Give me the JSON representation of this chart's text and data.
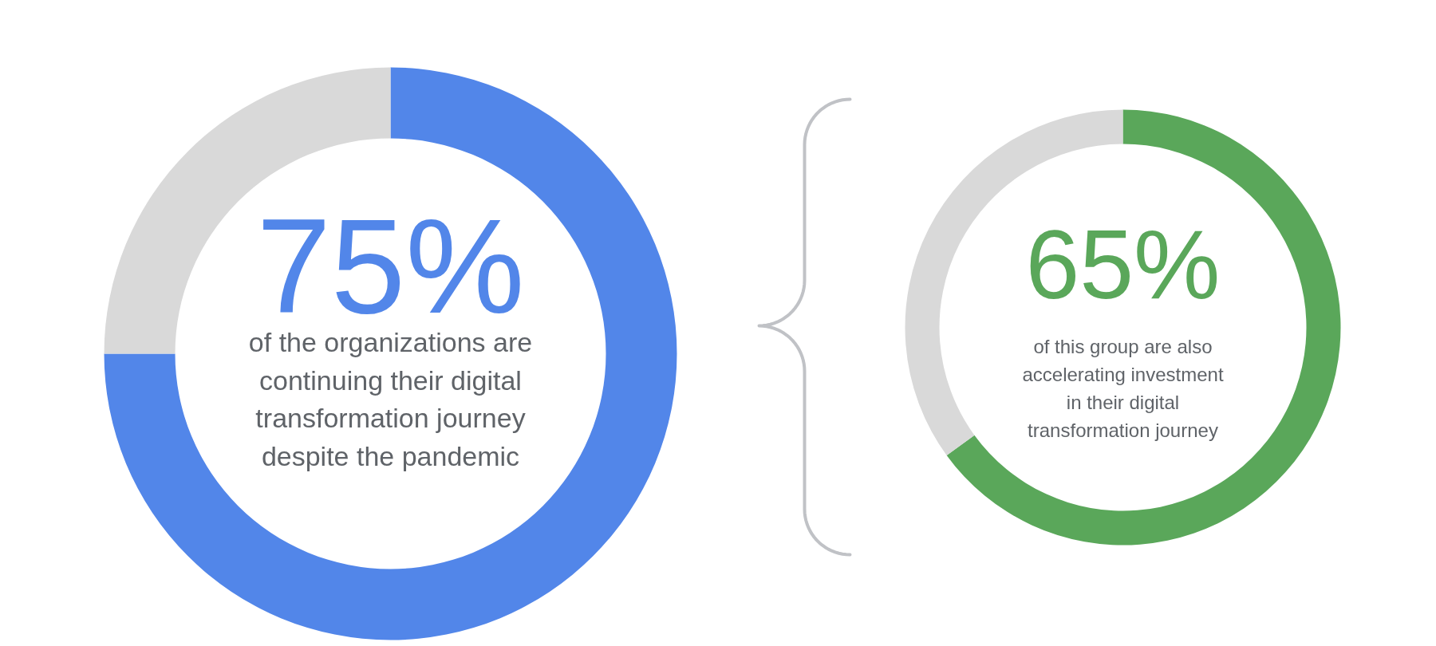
{
  "chart_data": [
    {
      "type": "donut",
      "categories": [
        null,
        null
      ],
      "values": [
        75,
        25
      ],
      "colors": [
        "#5286e9",
        "#d9d9d9"
      ],
      "value_labels": [
        "75%",
        null
      ],
      "annotations": [
        "of the organizations are continuing their digital transformation journey despite the pandemic"
      ]
    },
    {
      "type": "donut",
      "categories": [
        null,
        null
      ],
      "values": [
        65,
        35
      ],
      "colors": [
        "#5aa75a",
        "#d9d9d9"
      ],
      "value_labels": [
        "65%",
        null
      ],
      "annotations": [
        "of this group are also accelerating investment in their digital transformation journey"
      ]
    }
  ]
}
